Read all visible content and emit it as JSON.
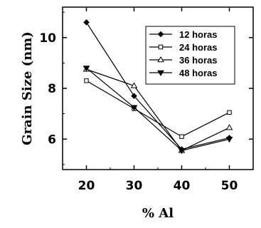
{
  "chart_data": {
    "type": "line",
    "xlabel": "% Al",
    "ylabel": "Grain Size (nm)",
    "x": [
      20,
      30,
      40,
      50
    ],
    "xticks": [
      20,
      30,
      40,
      50
    ],
    "xtick_labels": [
      "20",
      "30",
      "40",
      "50"
    ],
    "xlim": [
      15,
      55
    ],
    "yticks": [
      6,
      8,
      10
    ],
    "ytick_labels": [
      "6",
      "8",
      "10"
    ],
    "ylim": [
      4.8,
      11.2
    ],
    "legend_position": "top-right",
    "grid": false,
    "series": [
      {
        "name": "12 horas",
        "values": [
          10.6,
          7.7,
          5.6,
          6.05
        ],
        "marker": "diamond-filled",
        "color": "#000000"
      },
      {
        "name": "24 horas",
        "values": [
          8.3,
          7.2,
          6.1,
          7.05
        ],
        "marker": "square-open",
        "color": "#000000"
      },
      {
        "name": "36 horas",
        "values": [
          8.75,
          8.1,
          5.55,
          6.45
        ],
        "marker": "triangle-up-open",
        "color": "#000000"
      },
      {
        "name": "48 horas",
        "values": [
          8.8,
          7.25,
          5.55,
          6.0
        ],
        "marker": "triangle-down-filled",
        "color": "#000000"
      }
    ]
  }
}
